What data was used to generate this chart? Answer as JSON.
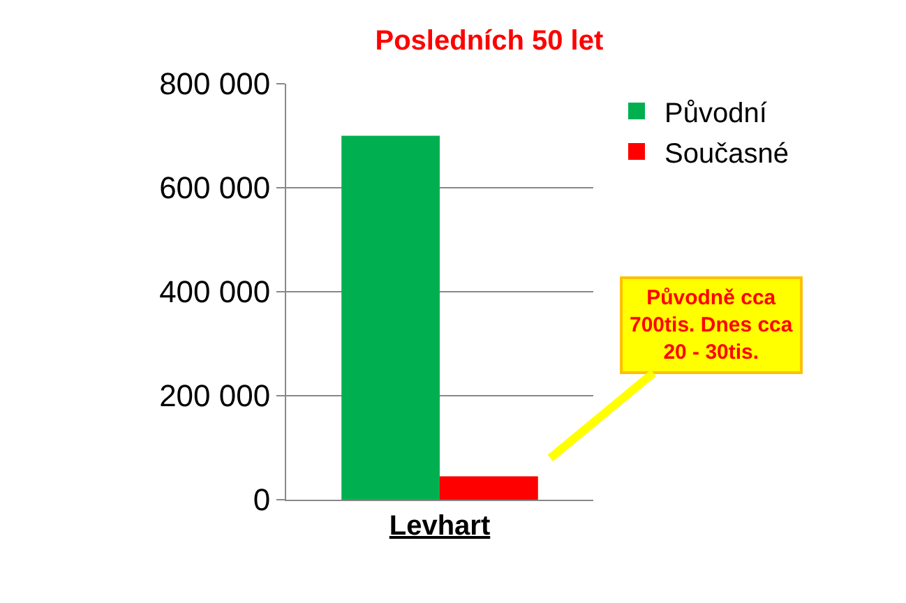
{
  "chart_data": {
    "type": "bar",
    "title": "Posledních 50 let",
    "categories": [
      "Levhart"
    ],
    "series": [
      {
        "name": "Původní",
        "color": "#00b050",
        "values": [
          700000
        ]
      },
      {
        "name": "Současné",
        "color": "#ff0000",
        "values": [
          45000
        ]
      }
    ],
    "ylim": [
      0,
      800000
    ],
    "yticks": [
      {
        "value": 0,
        "label": "0"
      },
      {
        "value": 200000,
        "label": "200 000"
      },
      {
        "value": 400000,
        "label": "400 000"
      },
      {
        "value": 600000,
        "label": "600 000"
      },
      {
        "value": 800000,
        "label": "800 000"
      }
    ],
    "grid": "y",
    "legend": "top right",
    "annotations": [
      "Původně cca 700tis. Dnes cca 20 - 30tis."
    ]
  }
}
